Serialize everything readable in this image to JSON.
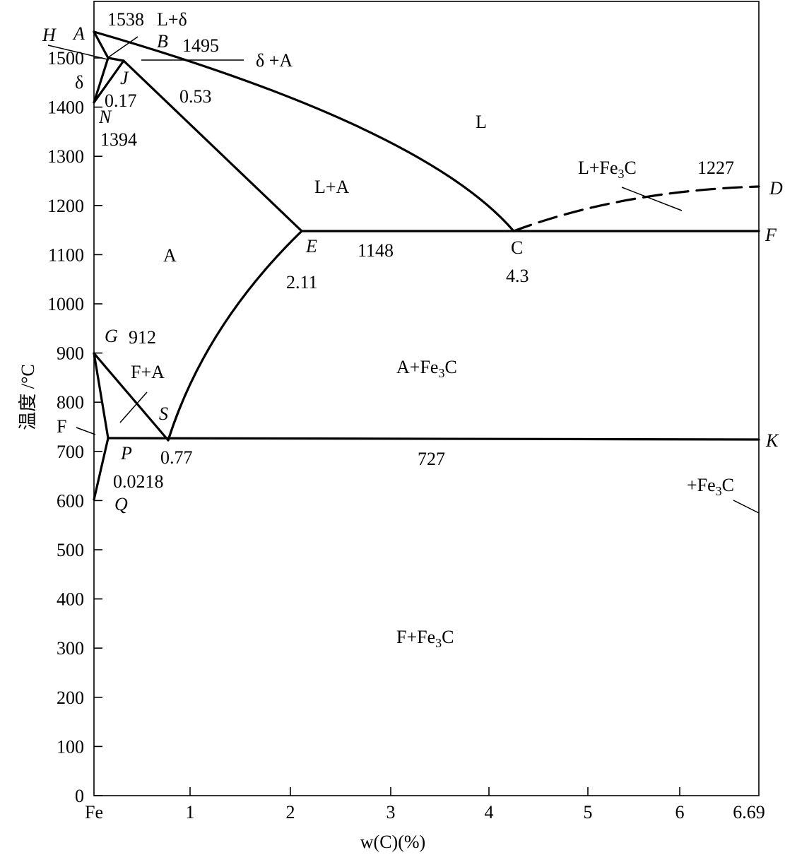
{
  "axes": {
    "ylabel": "温度 /°C",
    "xlabel": "w(C)(%)",
    "x_origin_label": "Fe",
    "x_max_label": "6.69",
    "xlim": [
      0,
      6.69
    ],
    "ylim": [
      0,
      1600
    ],
    "x_ticks": [
      {
        "v": 1,
        "label": "1"
      },
      {
        "v": 2,
        "label": "2"
      },
      {
        "v": 3,
        "label": "3"
      },
      {
        "v": 4,
        "label": "4"
      },
      {
        "v": 5,
        "label": "5"
      },
      {
        "v": 6,
        "label": "6"
      }
    ],
    "y_ticks": [
      {
        "v": 0,
        "label": "0"
      },
      {
        "v": 100,
        "label": "100"
      },
      {
        "v": 200,
        "label": "200"
      },
      {
        "v": 300,
        "label": "300"
      },
      {
        "v": 400,
        "label": "400"
      },
      {
        "v": 500,
        "label": "500"
      },
      {
        "v": 600,
        "label": "600"
      },
      {
        "v": 700,
        "label": "700"
      },
      {
        "v": 800,
        "label": "800"
      },
      {
        "v": 900,
        "label": "900"
      },
      {
        "v": 1000,
        "label": "1000"
      },
      {
        "v": 1100,
        "label": "1100"
      },
      {
        "v": 1200,
        "label": "1200"
      },
      {
        "v": 1300,
        "label": "1300"
      },
      {
        "v": 1400,
        "label": "1400"
      },
      {
        "v": 1500,
        "label": "1500"
      }
    ]
  },
  "points": {
    "A": {
      "label": "A",
      "c": 0,
      "t": 1538
    },
    "H": {
      "label": "H",
      "c": 0.09,
      "t": 1495
    },
    "B": {
      "label": "B",
      "c": 0.53,
      "t": 1495
    },
    "J": {
      "label": "J",
      "c": 0.17,
      "t": 1495
    },
    "N": {
      "label": "N",
      "c": 0,
      "t": 1394
    },
    "E": {
      "label": "E",
      "c": 2.11,
      "t": 1148
    },
    "C": {
      "label": "C",
      "c": 4.3,
      "t": 1148
    },
    "D": {
      "label": "D",
      "c": 6.69,
      "t": 1227
    },
    "F": {
      "label": "F",
      "c": 6.69,
      "t": 1148
    },
    "G": {
      "label": "G",
      "c": 0,
      "t": 912
    },
    "S": {
      "label": "S",
      "c": 0.77,
      "t": 727
    },
    "P": {
      "label": "P",
      "c": 0.0218,
      "t": 727
    },
    "K": {
      "label": "K",
      "c": 6.69,
      "t": 727
    },
    "Q": {
      "label": "Q",
      "c": 0,
      "t": 600
    }
  },
  "values": {
    "t_A": "1538",
    "t_B": "1495",
    "c_B": "0.53",
    "c_J": "0.17",
    "t_N": "1394",
    "t_D": "1227",
    "t_E": "1148",
    "c_E": "2.11",
    "c_C": "4.3",
    "t_G": "912",
    "c_S": "0.77",
    "t_S": "727",
    "c_P": "0.0218"
  },
  "regions": {
    "L": "L",
    "L_delta": "L+δ",
    "delta_A": "δ +A",
    "delta": "δ",
    "L_A": "L+A",
    "L_Fe3C_prefix": "L+Fe",
    "A": "A",
    "F_A": "F+A",
    "A_Fe3C_prefix": "A+Fe",
    "F": "F",
    "F_Fe3C_prefix": "F+Fe",
    "plus_Fe3C_prefix": "+Fe",
    "sub3": "3",
    "C_letter": "C"
  },
  "lines": [
    {
      "name": "liquidus-AC",
      "style": "solid"
    },
    {
      "name": "liquidus-CD",
      "style": "dashed"
    },
    {
      "name": "eutectic-ECF",
      "style": "solid"
    },
    {
      "name": "eutectoid-PSK",
      "style": "solid"
    }
  ]
}
